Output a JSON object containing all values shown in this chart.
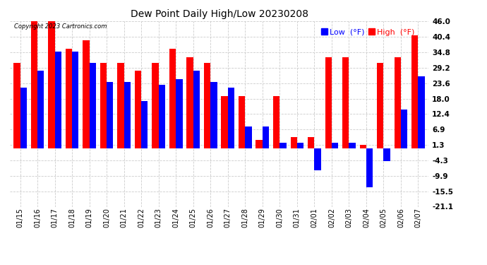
{
  "title": "Dew Point Daily High/Low 20230208",
  "copyright": "Copyright 2023 Cartronics.com",
  "dates": [
    "01/15",
    "01/16",
    "01/17",
    "01/18",
    "01/19",
    "01/20",
    "01/21",
    "01/22",
    "01/23",
    "01/24",
    "01/25",
    "01/26",
    "01/27",
    "01/28",
    "01/29",
    "01/30",
    "01/31",
    "02/01",
    "02/02",
    "02/03",
    "02/04",
    "02/05",
    "02/06",
    "02/07"
  ],
  "high": [
    31.0,
    46.0,
    46.0,
    36.0,
    39.0,
    31.0,
    31.0,
    28.0,
    31.0,
    36.0,
    33.0,
    31.0,
    19.0,
    19.0,
    3.0,
    19.0,
    4.0,
    4.0,
    33.0,
    33.0,
    1.3,
    31.0,
    33.0,
    41.0
  ],
  "low": [
    22.0,
    28.0,
    35.0,
    35.0,
    31.0,
    24.0,
    24.0,
    17.0,
    23.0,
    25.0,
    28.0,
    24.0,
    22.0,
    8.0,
    8.0,
    2.0,
    2.0,
    -8.0,
    2.0,
    2.0,
    -14.0,
    -4.5,
    14.0,
    26.0
  ],
  "high_color": "#ff0000",
  "low_color": "#0000ff",
  "bg_color": "#ffffff",
  "grid_color": "#aaaaaa",
  "ylim_min": -21.1,
  "ylim_max": 46.0,
  "yticks": [
    46.0,
    40.4,
    34.8,
    29.2,
    23.6,
    18.0,
    12.4,
    6.9,
    1.3,
    -4.3,
    -9.9,
    -15.5,
    -21.1
  ],
  "bar_width": 0.38,
  "figwidth": 6.9,
  "figheight": 3.75,
  "dpi": 100
}
